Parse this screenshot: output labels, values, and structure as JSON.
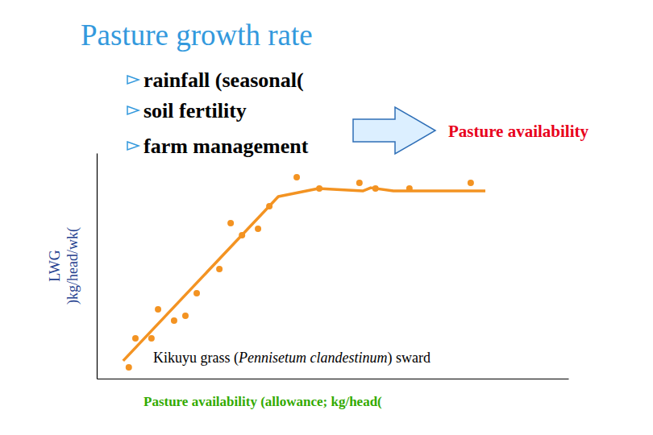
{
  "chart_data": {
    "type": "scatter",
    "title": "Pasture growth rate",
    "bullets": [
      "rainfall (seasonal(",
      "soil fertility",
      "farm management"
    ],
    "result_label": "Pasture availability",
    "annotation": [
      "Kikuyu grass (",
      "Pennisetum clandestinum",
      ") sward"
    ],
    "x_label": "Pasture availability (allowance; kg/head(",
    "y_label": [
      "LWG",
      ")kg/head/wk("
    ],
    "xlim": [
      0,
      100
    ],
    "ylim": [
      0,
      100
    ],
    "tick_labels": false,
    "grid": false,
    "series": [
      {
        "type": "scatter",
        "marker": "circle",
        "color": "#f39322",
        "x": [
          6.8,
          8.2,
          11.6,
          13.0,
          16.4,
          18.8,
          21.2,
          26.0,
          28.4,
          30.8,
          34.2,
          36.6,
          42.4,
          47.2,
          55.7,
          59.1,
          66.3,
          79.3
        ],
        "values": [
          5.0,
          17.9,
          17.9,
          30.7,
          25.7,
          27.9,
          37.9,
          48.6,
          68.9,
          63.6,
          66.4,
          76.4,
          89.3,
          84.3,
          86.8,
          84.3,
          84.3,
          86.8
        ]
      },
      {
        "type": "line",
        "line_style": "solid",
        "color": "#f39322",
        "x": [
          5.6,
          38.5,
          47.0,
          56.4,
          58.1,
          62.9,
          82.4
        ],
        "values": [
          7.9,
          80.7,
          84.3,
          83.2,
          84.6,
          83.2,
          83.2
        ]
      }
    ]
  }
}
